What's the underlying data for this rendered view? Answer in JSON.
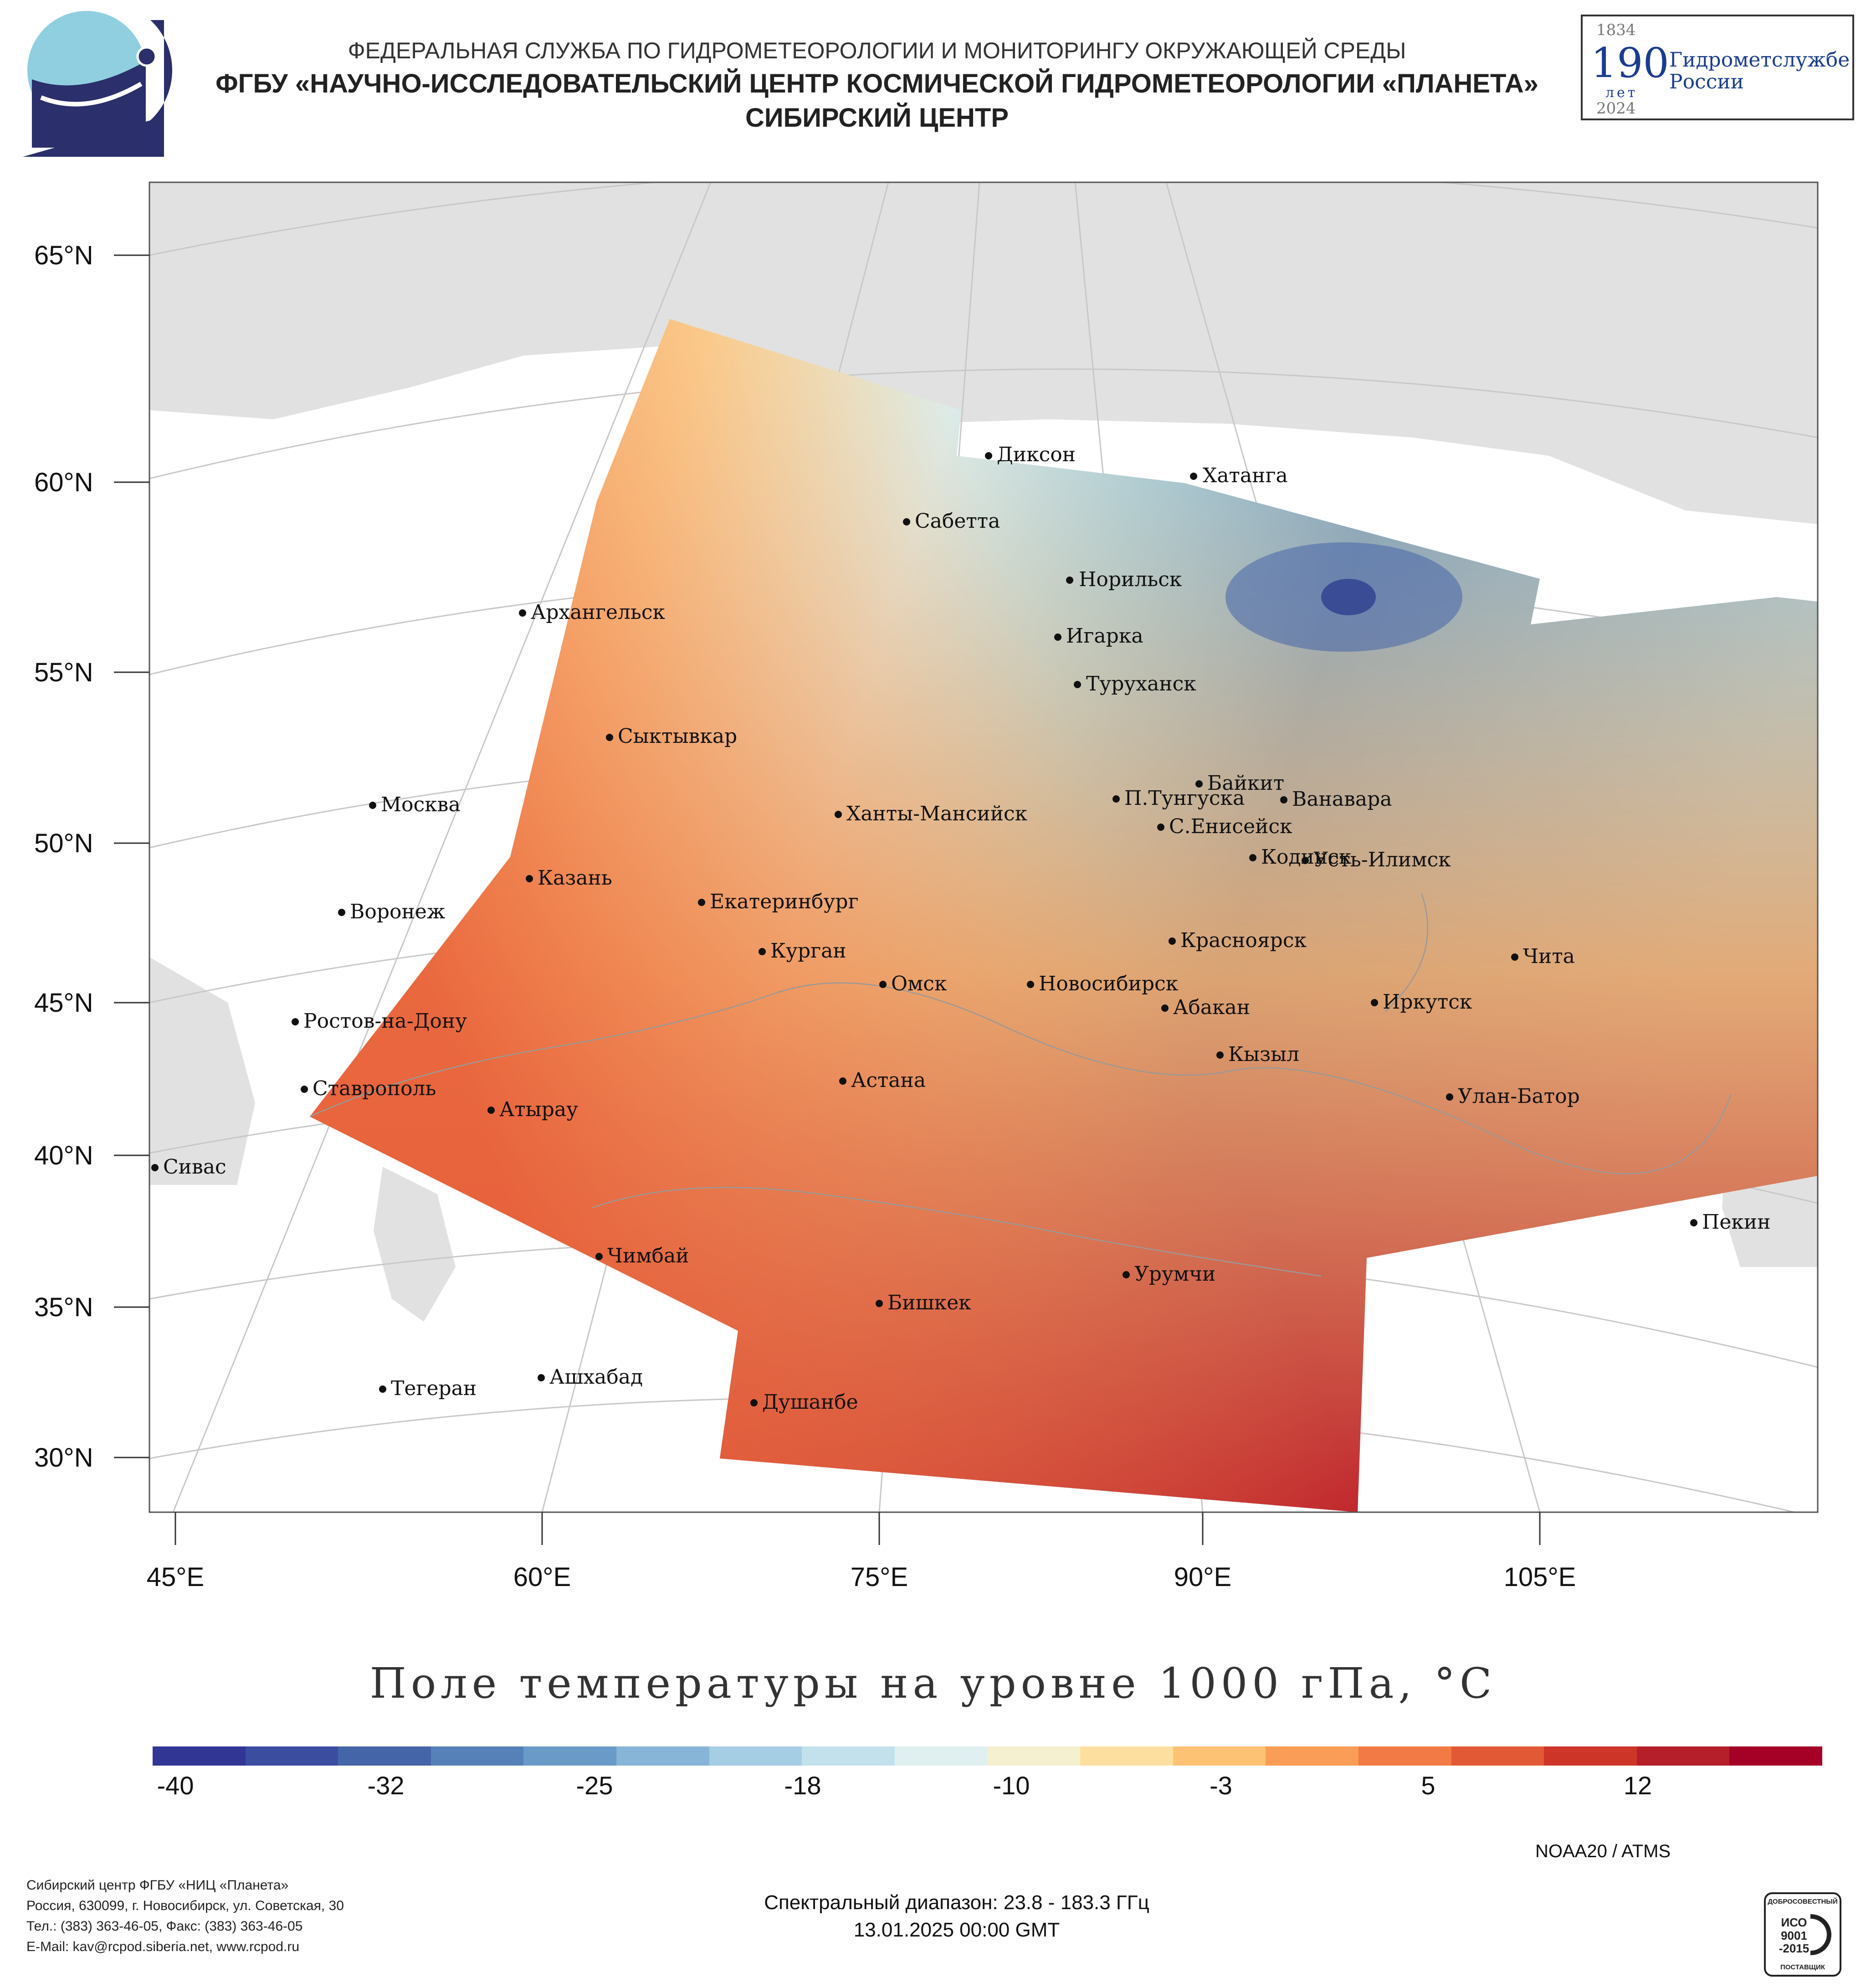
{
  "header": {
    "line1": "ФЕДЕРАЛЬНАЯ СЛУЖБА ПО ГИДРОМЕТЕОРОЛОГИИ И МОНИТОРИНГУ ОКРУЖАЮЩЕЙ СРЕДЫ",
    "line2": "ФГБУ «НАУЧНО-ИССЛЕДОВАТЕЛЬСКИЙ ЦЕНТР КОСМИЧЕСКОЙ ГИДРОМЕТЕОРОЛОГИИ «ПЛАНЕТА»",
    "line3": "СИБИРСКИЙ ЦЕНТР"
  },
  "badge": {
    "year_start": "1834",
    "number": "190",
    "unit": "лет",
    "text_line1": "Гидрометслужбе",
    "text_line2": "России",
    "year_end": "2024"
  },
  "map": {
    "lat_labels": [
      "65°N",
      "60°N",
      "55°N",
      "50°N",
      "45°N",
      "40°N",
      "35°N",
      "30°N"
    ],
    "lon_labels": [
      "45°E",
      "60°E",
      "75°E",
      "90°E",
      "105°E"
    ],
    "cities": [
      "Диксон",
      "Хатанга",
      "Сабетта",
      "Норильск",
      "Архангельск",
      "Игарка",
      "Туруханск",
      "Сыктывкар",
      "Байкит",
      "Москва",
      "П.Тунгуска",
      "Ванавара",
      "Ханты-Мансийск",
      "С.Енисейск",
      "Кодинск",
      "Усть-Илимск",
      "Казань",
      "Екатеринбург",
      "Воронеж",
      "Красноярск",
      "Курган",
      "Чита",
      "Омск",
      "Новосибирск",
      "Иркутск",
      "Ростов-на-Дону",
      "Абакан",
      "Кызыл",
      "Астана",
      "Ставрополь",
      "Улан-Батор",
      "Атырау",
      "Сивас",
      "Пекин",
      "Чимбай",
      "Урумчи",
      "Бишкек",
      "Ашхабад",
      "Тегеран",
      "Душанбе"
    ]
  },
  "title": "Поле температуры на уровне 1000 гПа, °С",
  "colorbar": {
    "ticks": [
      "-40",
      "-32",
      "-25",
      "-18",
      "-10",
      "-3",
      "5",
      "12"
    ],
    "colors": [
      "#313695",
      "#3a4d9f",
      "#4565a9",
      "#5681b8",
      "#6a9bc8",
      "#86b5d8",
      "#a5cde3",
      "#c3e1ec",
      "#e0f0f0",
      "#f5f0cf",
      "#fde0a0",
      "#fdc273",
      "#fa9d57",
      "#f27a44",
      "#e25a35",
      "#cd3529",
      "#b51f2a",
      "#a50026"
    ]
  },
  "satellite": "NOAA20 / ATMS",
  "footer": {
    "spectral": "Спектральный диапазон: 23.8 - 183.3 ГГц",
    "datetime": "13.01.2025 00:00 GMT",
    "org": "Сибирский центр ФГБУ «НИЦ «Планета»",
    "address": "Россия, 630099, г. Новосибирск, ул. Советская, 30",
    "phone": "Тел.: (383) 363-46-05, Факс: (383) 363-46-05",
    "email": "E-Mail: kav@rcpod.siberia.net, www.rcpod.ru"
  },
  "iso_badge": {
    "top": "ДОБРОСОВЕСТНЫЙ",
    "code": "ИСО 9001 -2015",
    "bottom": "ПОСТАВЩИК"
  }
}
